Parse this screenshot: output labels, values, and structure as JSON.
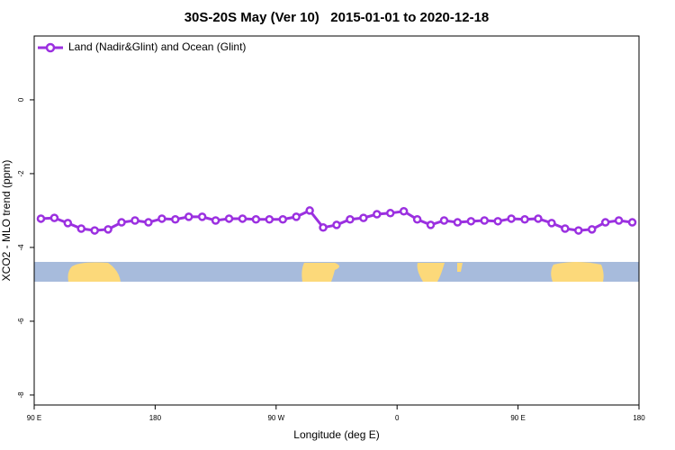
{
  "chart_data": {
    "type": "line",
    "title": "30S-20S May (Ver 10)   2015-01-01 to 2020-12-18",
    "x_label": "Longitude (deg E)",
    "y_label": "XCO2 - MLO trend (ppm)",
    "x": [
      95,
      105,
      115,
      125,
      135,
      145,
      155,
      165,
      175,
      185,
      195,
      205,
      215,
      225,
      235,
      245,
      255,
      265,
      275,
      285,
      295,
      305,
      315,
      325,
      335,
      345,
      355,
      365,
      375,
      385,
      395,
      405,
      415,
      425,
      435,
      445,
      455,
      465,
      475,
      485,
      495,
      505,
      515,
      525,
      535
    ],
    "series": [
      {
        "name": "Land (Nadir&Glint) and Ocean (Glint)",
        "color": "#9b30e0",
        "values": [
          -3.22,
          -3.2,
          -3.34,
          -3.49,
          -3.54,
          -3.51,
          -3.32,
          -3.27,
          -3.32,
          -3.22,
          -3.24,
          -3.17,
          -3.17,
          -3.27,
          -3.22,
          -3.22,
          -3.24,
          -3.24,
          -3.24,
          -3.17,
          -3.0,
          -3.46,
          -3.39,
          -3.24,
          -3.2,
          -3.1,
          -3.07,
          -3.02,
          -3.24,
          -3.39,
          -3.27,
          -3.32,
          -3.29,
          -3.27,
          -3.29,
          -3.22,
          -3.24,
          -3.22,
          -3.34,
          -3.49,
          -3.54,
          -3.51,
          -3.32,
          -3.27,
          -3.32
        ]
      }
    ],
    "xlim": [
      90,
      540
    ],
    "xticks": [
      {
        "value": 90,
        "label": "90 E"
      },
      180,
      {
        "value": 270,
        "label": "90 W"
      },
      {
        "value": 360,
        "label": "0"
      },
      {
        "value": 450,
        "label": "90 E"
      },
      180
    ],
    "ylim": [
      -8.27,
      1.73
    ],
    "yticks": [
      -8,
      -6,
      -4,
      -2,
      0
    ],
    "legend": "top-left"
  }
}
